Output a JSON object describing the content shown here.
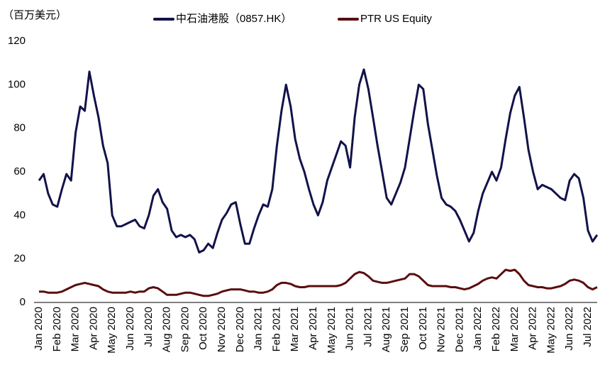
{
  "chart_data": {
    "type": "line",
    "y_label": "（百万美元）",
    "categories": [
      "Jan 2020",
      null,
      null,
      null,
      "Feb 2020",
      null,
      null,
      null,
      "Mar 2020",
      null,
      null,
      null,
      "Apr 2020",
      null,
      null,
      null,
      "May 2020",
      null,
      null,
      null,
      "Jun 2020",
      null,
      null,
      null,
      "Jul 2020",
      null,
      null,
      null,
      "Aug 2020",
      null,
      null,
      null,
      "Sep 2020",
      null,
      null,
      null,
      "Oct 2020",
      null,
      null,
      null,
      "Nov 2020",
      null,
      null,
      null,
      "Dec 2020",
      null,
      null,
      null,
      "Jan 2021",
      null,
      null,
      null,
      "Feb 2021",
      null,
      null,
      null,
      "Mar 2021",
      null,
      null,
      null,
      "Apr 2021",
      null,
      null,
      null,
      "May 2021",
      null,
      null,
      null,
      "Jun 2021",
      null,
      null,
      null,
      "Jul 2021",
      null,
      null,
      null,
      "Aug 2021",
      null,
      null,
      null,
      "Sep 2021",
      null,
      null,
      null,
      "Oct 2021",
      null,
      null,
      null,
      "Nov 2021",
      null,
      null,
      null,
      "Dec 2021",
      null,
      null,
      null,
      "Jan 2022",
      null,
      null,
      null,
      "Feb 2022",
      null,
      null,
      null,
      "Mar 2022",
      null,
      null,
      null,
      "Apr 2022",
      null,
      null,
      null,
      "May 2022",
      null,
      null,
      null,
      "Jun 2022",
      null,
      null,
      null,
      "Jul 2022",
      null,
      null
    ],
    "series": [
      {
        "name": "中石油港股（0857.HK）",
        "color": "#12124a",
        "values": [
          56,
          59,
          50,
          45,
          44,
          52,
          59,
          56,
          78,
          90,
          88,
          106,
          95,
          85,
          72,
          64,
          40,
          35,
          35,
          36,
          37,
          38,
          35,
          34,
          40,
          49,
          52,
          46,
          43,
          33,
          30,
          31,
          30,
          31,
          29,
          23,
          24,
          27,
          25,
          32,
          38,
          41,
          45,
          46,
          36,
          27,
          27,
          34,
          40,
          45,
          44,
          52,
          72,
          88,
          100,
          90,
          75,
          66,
          60,
          52,
          45,
          40,
          46,
          56,
          62,
          68,
          74,
          72,
          62,
          85,
          100,
          107,
          98,
          85,
          72,
          60,
          48,
          45,
          50,
          55,
          62,
          75,
          88,
          100,
          98,
          82,
          70,
          58,
          48,
          45,
          44,
          42,
          38,
          33,
          28,
          32,
          42,
          50,
          55,
          60,
          56,
          62,
          75,
          87,
          95,
          99,
          85,
          70,
          60,
          52,
          54,
          53,
          52,
          50,
          48,
          47,
          56,
          59,
          57,
          48,
          33,
          28,
          31
        ]
      },
      {
        "name": "PTR US Equity",
        "color": "#5a0e0e",
        "values": [
          5,
          5,
          4.5,
          4.5,
          4.5,
          5,
          6,
          7,
          8,
          8.5,
          9,
          8.5,
          8,
          7.5,
          6,
          5,
          4.5,
          4.5,
          4.5,
          4.5,
          5,
          4.5,
          5,
          5,
          6.5,
          7,
          6.5,
          5,
          3.5,
          3.5,
          3.5,
          4,
          4.5,
          4.5,
          4,
          3.5,
          3,
          3,
          3.5,
          4,
          5,
          5.5,
          6,
          6,
          6,
          5.5,
          5,
          5,
          4.5,
          4.5,
          5,
          6,
          8,
          9,
          9,
          8.5,
          7.5,
          7,
          7,
          7.5,
          7.5,
          7.5,
          7.5,
          7.5,
          7.5,
          7.5,
          8,
          9,
          11,
          13,
          14,
          13.5,
          12,
          10,
          9.5,
          9,
          9,
          9.5,
          10,
          10.5,
          11,
          13,
          13,
          12,
          10,
          8,
          7.5,
          7.5,
          7.5,
          7.5,
          7,
          7,
          6.5,
          6,
          6.5,
          7.5,
          8.5,
          10,
          11,
          11.5,
          11,
          13,
          15,
          14.5,
          15,
          13,
          10,
          8,
          7.5,
          7,
          7,
          6.5,
          6.5,
          7,
          7.5,
          8.5,
          10,
          10.5,
          10,
          9,
          7,
          6,
          7
        ]
      }
    ],
    "ylim": [
      0,
      120
    ],
    "yticks": [
      0,
      20,
      40,
      60,
      80,
      100,
      120
    ],
    "grid": false
  }
}
